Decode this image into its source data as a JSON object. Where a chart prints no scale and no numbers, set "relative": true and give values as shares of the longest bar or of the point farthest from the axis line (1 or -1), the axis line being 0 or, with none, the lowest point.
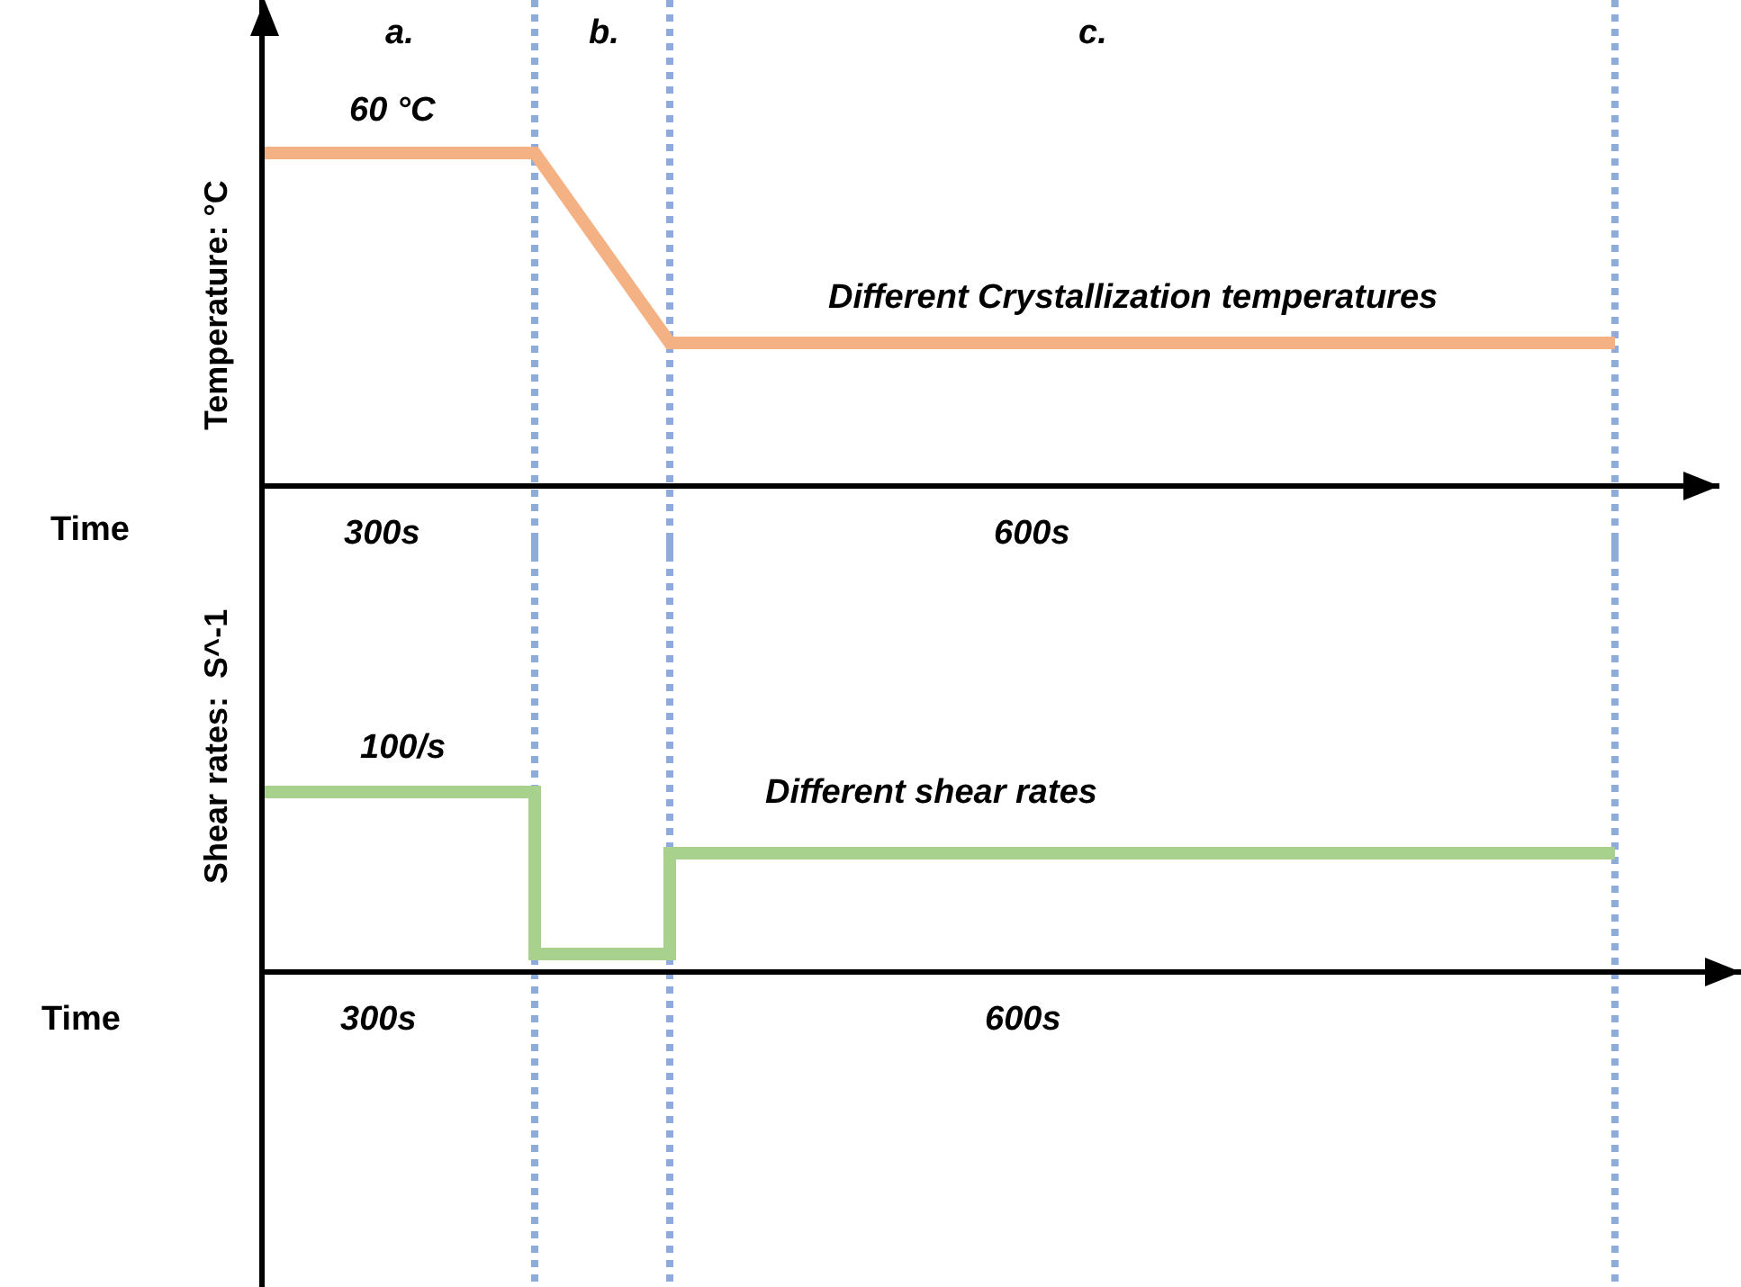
{
  "chart_data": [
    {
      "type": "line",
      "relative": true,
      "grid": "x",
      "xlabel": "Time",
      "ylabel": "Temperature: °C",
      "categories": [
        null,
        null,
        null,
        null,
        null,
        null,
        null,
        null,
        null,
        null,
        null
      ],
      "series": [
        {
          "color": "#f4b183",
          "values": [
            1,
            1,
            1,
            0.43,
            0.43,
            0.43,
            0.43,
            0.43,
            0.43,
            0.43,
            0.43
          ]
        }
      ],
      "annotations": [
        "a.",
        "b.",
        "c.",
        "60 °C",
        "Different Crystallization temperatures",
        "300s",
        "600s"
      ]
    },
    {
      "type": "step",
      "relative": true,
      "grid": "x",
      "xlabel": "Time",
      "ylabel": "Shear rates:  S^-1",
      "categories": [
        null,
        null,
        null,
        null,
        null,
        null,
        null,
        null,
        null,
        null,
        null
      ],
      "series": [
        {
          "color": "#a9d18e",
          "values": [
            1,
            1,
            0.1,
            0.66,
            0.66,
            0.66,
            0.66,
            0.66,
            0.66,
            0.66,
            0.66
          ]
        }
      ],
      "annotations": [
        "100/s",
        "Different shear rates",
        "300s",
        "600s"
      ]
    }
  ]
}
